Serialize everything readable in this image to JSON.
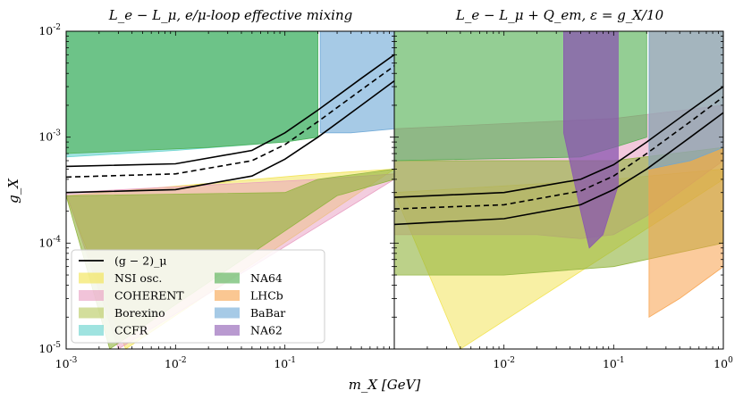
{
  "chart_data": [
    {
      "type": "area",
      "title": "L_e − L_μ, e/μ-loop effective mixing",
      "xlabel": "m_X [GeV]",
      "ylabel": "g_X",
      "xscale": "log",
      "yscale": "log",
      "xlim": [
        0.001,
        1
      ],
      "ylim": [
        1e-05,
        0.01
      ],
      "xticks": [
        "10^-3",
        "10^-2",
        "10^-1"
      ],
      "yticks": [
        "10^-5",
        "10^-4",
        "10^-3",
        "10^-2"
      ],
      "series": [
        {
          "name": "NSI osc.",
          "color": "#f2e24a",
          "opacity": 0.5,
          "upper": [
            [
              0.001,
              0.00028
            ],
            [
              0.2,
              0.00045
            ],
            [
              1,
              0.0005
            ]
          ],
          "lower": [
            [
              0.0035,
              1e-05
            ],
            [
              1,
              0.0005
            ]
          ]
        },
        {
          "name": "COHERENT",
          "color": "#e89bc0",
          "opacity": 0.5,
          "upper": [
            [
              0.001,
              0.0003
            ],
            [
              0.2,
              0.0004
            ],
            [
              1,
              0.00045
            ]
          ],
          "lower": [
            [
              0.003,
              1e-05
            ],
            [
              1,
              0.0004
            ]
          ]
        },
        {
          "name": "Borexino",
          "color": "#8fb33b",
          "opacity": 0.6,
          "upper": [
            [
              0.001,
              0.00028
            ],
            [
              0.1,
              0.0003
            ],
            [
              0.2,
              0.0004
            ],
            [
              1,
              0.0005
            ]
          ],
          "lower": [
            [
              0.0025,
              1e-05
            ],
            [
              0.3,
              0.00028
            ],
            [
              1,
              0.0004
            ]
          ]
        },
        {
          "name": "CCFR",
          "color": "#5fd1cc",
          "opacity": 0.6,
          "upper": [
            [
              0.001,
              0.01
            ],
            [
              0.2,
              0.01
            ]
          ],
          "lower": [
            [
              0.001,
              0.00065
            ],
            [
              0.01,
              0.00075
            ],
            [
              0.1,
              0.0009
            ],
            [
              0.2,
              0.001
            ]
          ]
        },
        {
          "name": "NA64",
          "color": "#4cae4c",
          "opacity": 0.6,
          "upper": [
            [
              0.001,
              0.01
            ],
            [
              0.2,
              0.01
            ]
          ],
          "lower": [
            [
              0.001,
              0.0007
            ],
            [
              0.02,
              0.0008
            ],
            [
              0.1,
              0.0009
            ],
            [
              0.2,
              0.001
            ]
          ]
        },
        {
          "name": "BaBar",
          "color": "#6ba6d6",
          "opacity": 0.6,
          "upper": [
            [
              0.21,
              0.01
            ],
            [
              1,
              0.01
            ]
          ],
          "lower": [
            [
              0.21,
              0.0011
            ],
            [
              0.4,
              0.0011
            ],
            [
              1,
              0.0012
            ]
          ]
        }
      ],
      "curves": [
        {
          "name": "(g − 2)_μ",
          "style": "solid",
          "points": [
            [
              0.001,
              0.00053
            ],
            [
              0.01,
              0.00056
            ],
            [
              0.05,
              0.00075
            ],
            [
              0.1,
              0.0011
            ],
            [
              0.2,
              0.0018
            ],
            [
              0.5,
              0.0036
            ],
            [
              1,
              0.006
            ]
          ]
        },
        {
          "name": "(g − 2)_μ central",
          "style": "dashed",
          "points": [
            [
              0.001,
              0.00042
            ],
            [
              0.01,
              0.00045
            ],
            [
              0.05,
              0.0006
            ],
            [
              0.1,
              0.00085
            ],
            [
              0.2,
              0.0014
            ],
            [
              0.5,
              0.0028
            ],
            [
              1,
              0.0047
            ]
          ]
        },
        {
          "name": "(g − 2)_μ lower",
          "style": "solid",
          "points": [
            [
              0.001,
              0.0003
            ],
            [
              0.01,
              0.00032
            ],
            [
              0.05,
              0.00043
            ],
            [
              0.1,
              0.00062
            ],
            [
              0.2,
              0.001
            ],
            [
              0.5,
              0.002
            ],
            [
              1,
              0.0034
            ]
          ]
        }
      ]
    },
    {
      "type": "area",
      "title": "L_e − L_μ + Q_em, ε = g_X/10",
      "xlabel": "m_X [GeV]",
      "ylabel": "g_X",
      "xscale": "log",
      "yscale": "log",
      "xlim": [
        0.001,
        1
      ],
      "ylim": [
        1e-05,
        0.01
      ],
      "xticks": [
        "10^-2",
        "10^-1",
        "10^0"
      ],
      "series": [
        {
          "name": "NSI osc.",
          "color": "#f2e24a",
          "opacity": 0.5,
          "upper": [
            [
              0.001,
              0.0003
            ],
            [
              0.1,
              0.0004
            ],
            [
              1,
              0.0005
            ]
          ],
          "lower": [
            [
              0.004,
              1e-05
            ],
            [
              1,
              0.0004
            ]
          ]
        },
        {
          "name": "COHERENT",
          "color": "#e89bc0",
          "opacity": 0.55,
          "upper": [
            [
              0.001,
              0.0012
            ],
            [
              0.1,
              0.0015
            ],
            [
              1,
              0.002
            ]
          ],
          "lower": [
            [
              0.001,
              0.00012
            ],
            [
              0.02,
              0.00012
            ],
            [
              0.05,
              0.00011
            ],
            [
              0.1,
              0.00012
            ],
            [
              0.2,
              0.00018
            ],
            [
              1,
              0.0006
            ]
          ]
        },
        {
          "name": "Borexino",
          "color": "#8fb33b",
          "opacity": 0.6,
          "upper": [
            [
              0.001,
              0.0006
            ],
            [
              0.1,
              0.0006
            ],
            [
              1,
              0.0008
            ]
          ],
          "lower": [
            [
              0.001,
              5e-05
            ],
            [
              0.01,
              5e-05
            ],
            [
              0.1,
              6e-05
            ],
            [
              1,
              0.0001
            ]
          ]
        },
        {
          "name": "NA64",
          "color": "#4cae4c",
          "opacity": 0.6,
          "upper": [
            [
              0.001,
              0.01
            ],
            [
              0.2,
              0.01
            ]
          ],
          "lower": [
            [
              0.001,
              0.0006
            ],
            [
              0.05,
              0.00065
            ],
            [
              0.1,
              0.0008
            ],
            [
              0.2,
              0.001
            ]
          ]
        },
        {
          "name": "LHCb",
          "color": "#f7a14a",
          "opacity": 0.55,
          "upper": [
            [
              0.21,
              0.01
            ],
            [
              1,
              0.01
            ]
          ],
          "lower": [
            [
              0.21,
              2e-05
            ],
            [
              0.4,
              3e-05
            ],
            [
              1,
              6e-05
            ]
          ]
        },
        {
          "name": "BaBar",
          "color": "#6ba6d6",
          "opacity": 0.6,
          "upper": [
            [
              0.21,
              0.01
            ],
            [
              1,
              0.01
            ]
          ],
          "lower": [
            [
              0.21,
              0.0005
            ],
            [
              0.5,
              0.0006
            ],
            [
              1,
              0.0008
            ]
          ]
        },
        {
          "name": "NA62",
          "color": "#8a56b0",
          "opacity": 0.75,
          "upper": [
            [
              0.035,
              0.01
            ],
            [
              0.11,
              0.01
            ]
          ],
          "lower": [
            [
              0.035,
              0.0011
            ],
            [
              0.05,
              0.0002
            ],
            [
              0.06,
              9e-05
            ],
            [
              0.08,
              0.00012
            ],
            [
              0.11,
              0.00035
            ]
          ]
        }
      ],
      "curves": [
        {
          "name": "(g − 2)_μ",
          "style": "solid",
          "points": [
            [
              0.001,
              0.00027
            ],
            [
              0.01,
              0.0003
            ],
            [
              0.05,
              0.0004
            ],
            [
              0.1,
              0.00055
            ],
            [
              0.2,
              0.0009
            ],
            [
              0.5,
              0.0018
            ],
            [
              1,
              0.003
            ]
          ]
        },
        {
          "name": "(g − 2)_μ central",
          "style": "dashed",
          "points": [
            [
              0.001,
              0.00021
            ],
            [
              0.01,
              0.00023
            ],
            [
              0.05,
              0.00031
            ],
            [
              0.1,
              0.00043
            ],
            [
              0.2,
              0.0007
            ],
            [
              0.5,
              0.0014
            ],
            [
              1,
              0.0024
            ]
          ]
        },
        {
          "name": "(g − 2)_μ lower",
          "style": "solid",
          "points": [
            [
              0.001,
              0.00015
            ],
            [
              0.01,
              0.00017
            ],
            [
              0.05,
              0.00023
            ],
            [
              0.1,
              0.00032
            ],
            [
              0.2,
              0.0005
            ],
            [
              0.5,
              0.001
            ],
            [
              1,
              0.0017
            ]
          ]
        }
      ]
    }
  ],
  "legend": {
    "placement": "bottom-left of left panel",
    "entries": [
      {
        "label": "(g − 2)_μ",
        "kind": "line",
        "color": "#000000"
      },
      {
        "label": "NSI osc.",
        "kind": "patch",
        "color": "#f2e24a"
      },
      {
        "label": "COHERENT",
        "kind": "patch",
        "color": "#e89bc0"
      },
      {
        "label": "Borexino",
        "kind": "patch",
        "color": "#b6c85a"
      },
      {
        "label": "CCFR",
        "kind": "patch",
        "color": "#5fd1cc"
      },
      {
        "label": "NA64",
        "kind": "patch",
        "color": "#4cae4c"
      },
      {
        "label": "LHCb",
        "kind": "patch",
        "color": "#f7a14a"
      },
      {
        "label": "BaBar",
        "kind": "patch",
        "color": "#6ba6d6"
      },
      {
        "label": "NA62",
        "kind": "patch",
        "color": "#8a56b0"
      }
    ]
  }
}
